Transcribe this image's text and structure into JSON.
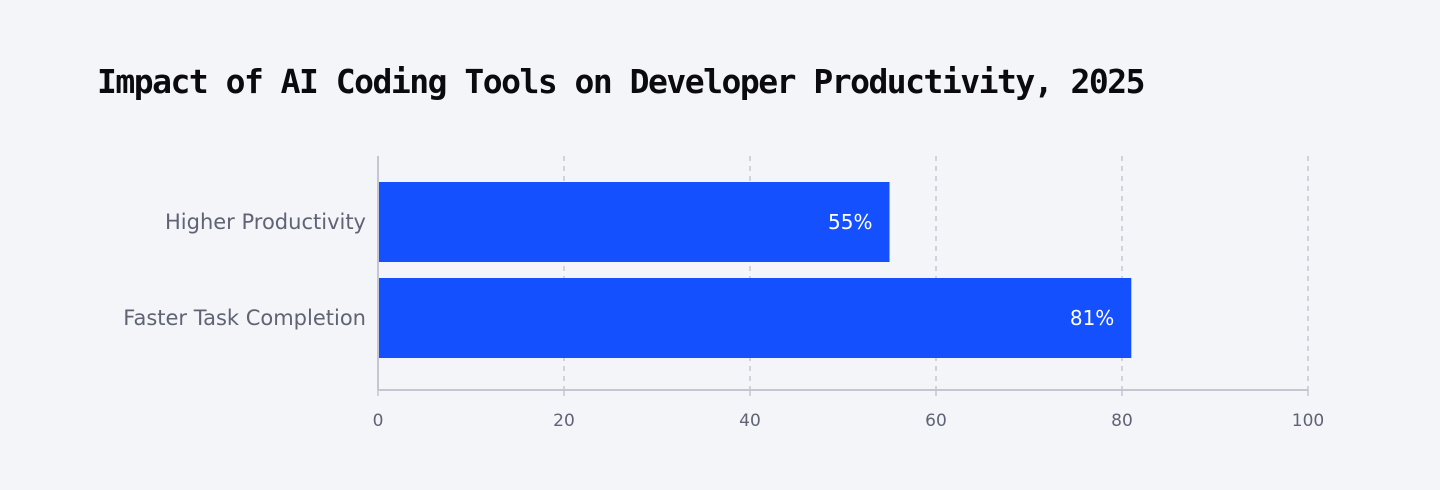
{
  "chart_data": {
    "type": "bar",
    "orientation": "horizontal",
    "title": "Impact of AI Coding Tools on Developer Productivity, 2025",
    "categories": [
      "Higher Productivity",
      "Faster Task Completion"
    ],
    "values": [
      55,
      81
    ],
    "value_labels": [
      "55%",
      "81%"
    ],
    "xlim": [
      0,
      100
    ],
    "xticks": [
      0,
      20,
      40,
      60,
      80,
      100
    ],
    "xtick_labels": [
      "0",
      "20",
      "40",
      "60",
      "80",
      "100"
    ],
    "grid": "vertical dashed",
    "bar_color": "#1550ff",
    "xlabel": "",
    "ylabel": ""
  }
}
